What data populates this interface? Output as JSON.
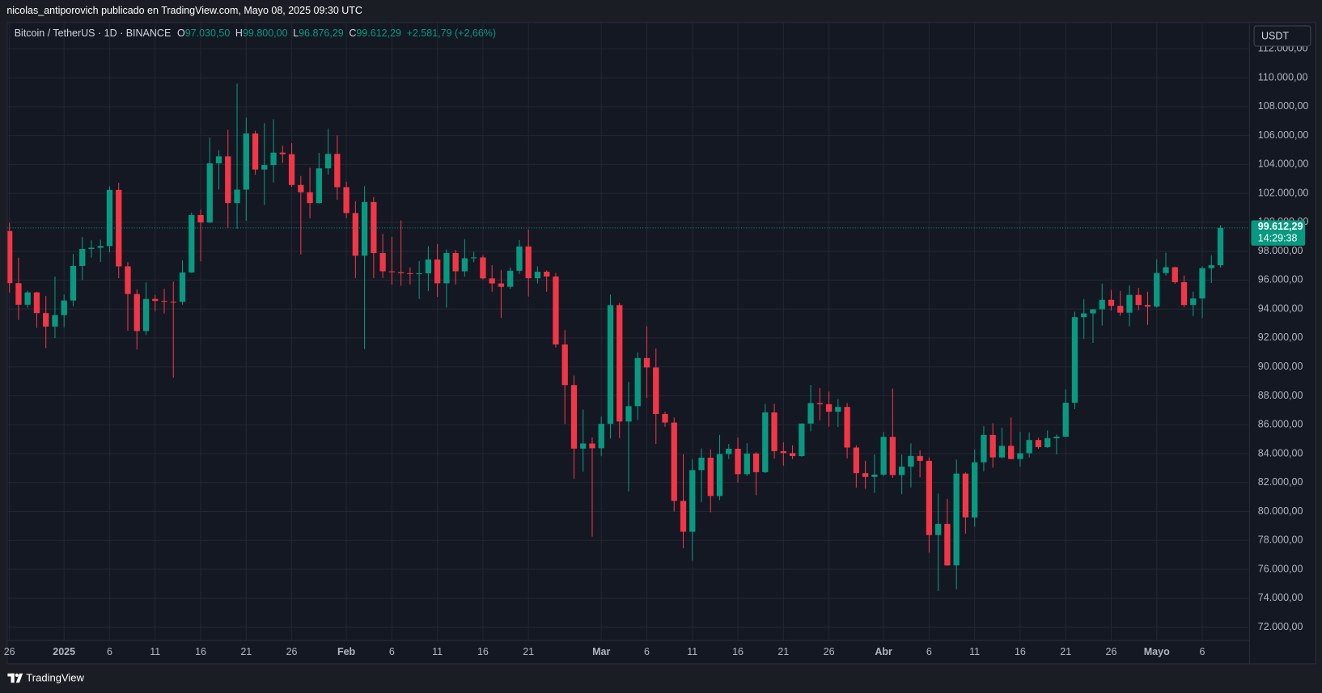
{
  "header": {
    "text": "nicolas_antiporovich publicado en TradingView.com, Mayo 08, 2025 09:30 UTC"
  },
  "chart_data": {
    "type": "candlestick",
    "title": "Bitcoin / TetherUS · 1D · BINANCE",
    "ohlc_legend": [
      {
        "key": "O",
        "label": "97.030,50"
      },
      {
        "key": "H",
        "label": "99.800,00"
      },
      {
        "key": "L",
        "label": "96.876,29"
      },
      {
        "key": "C",
        "label": "99.612,29"
      }
    ],
    "change_label": "+2.581,79 (+2,66%)",
    "currency": "USDT",
    "up_color": "#089981",
    "down_color": "#f23645",
    "grid": true,
    "categories": [
      "26",
      null,
      null,
      null,
      null,
      null,
      "2025",
      null,
      null,
      null,
      null,
      "6",
      null,
      null,
      null,
      null,
      "11",
      null,
      null,
      null,
      null,
      "16",
      null,
      null,
      null,
      null,
      "21",
      null,
      null,
      null,
      null,
      "26",
      null,
      null,
      null,
      null,
      null,
      "Feb",
      null,
      null,
      null,
      null,
      "6",
      null,
      null,
      null,
      null,
      "11",
      null,
      null,
      null,
      null,
      "16",
      null,
      null,
      null,
      null,
      "21",
      null,
      null,
      null,
      null,
      null,
      null,
      null,
      "Mar",
      null,
      null,
      null,
      null,
      "6",
      null,
      null,
      null,
      null,
      "11",
      null,
      null,
      null,
      null,
      "16",
      null,
      null,
      null,
      null,
      "21",
      null,
      null,
      null,
      null,
      "26",
      null,
      null,
      null,
      null,
      null,
      "Abr",
      null,
      null,
      null,
      null,
      "6",
      null,
      null,
      null,
      null,
      "11",
      null,
      null,
      null,
      null,
      "16",
      null,
      null,
      null,
      null,
      "21",
      null,
      null,
      null,
      null,
      "26",
      null,
      null,
      null,
      null,
      "Mayo",
      null,
      null,
      null,
      null,
      "6",
      null,
      null
    ],
    "open": [
      99400,
      95790,
      94300,
      95150,
      93720,
      92790,
      93580,
      94590,
      96980,
      98150,
      98240,
      98360,
      102240,
      96950,
      95040,
      92480,
      94700,
      94560,
      94510,
      94500,
      96530,
      100500,
      99990,
      104080,
      104560,
      101330,
      102260,
      106140,
      103650,
      103960,
      104820,
      104710,
      102580,
      102080,
      101330,
      103730,
      104730,
      102430,
      100640,
      97690,
      101400,
      97870,
      96610,
      96550,
      96480,
      96470,
      96470,
      97430,
      95780,
      97870,
      96610,
      97510,
      97570,
      96120,
      95770,
      95540,
      96650,
      98330,
      96130,
      96580,
      96250,
      91550,
      88740,
      84350,
      84700,
      84370,
      86060,
      94270,
      86220,
      87280,
      90610,
      89960,
      86740,
      86150,
      80730,
      78600,
      82860,
      83720,
      81070,
      83970,
      84340,
      82580,
      84010,
      82720,
      86850,
      84170,
      84040,
      83830,
      86080,
      87500,
      87420,
      86900,
      87230,
      84420,
      82650,
      82390,
      82550,
      85160,
      82520,
      83100,
      83840,
      83500,
      78370,
      79140,
      76270,
      82620,
      79590,
      83400,
      85290,
      83740,
      84540,
      83630,
      84030,
      84940,
      84450,
      85060,
      85170,
      87520,
      93440,
      93700,
      93980,
      94640,
      94220,
      93750,
      94980,
      94280,
      94170,
      96490,
      96890,
      95860,
      94280,
      94730,
      96830,
      97030.5
    ],
    "high": [
      99960,
      97540,
      95270,
      95200,
      94900,
      96250,
      95000,
      97800,
      98980,
      98750,
      98800,
      102480,
      102730,
      97250,
      95350,
      95840,
      94980,
      95400,
      95900,
      97370,
      100680,
      100870,
      105860,
      104990,
      106400,
      109590,
      107240,
      106330,
      106850,
      107120,
      105290,
      105470,
      103200,
      103780,
      104800,
      106460,
      106010,
      102800,
      101460,
      102500,
      101740,
      99200,
      99000,
      100140,
      96880,
      97320,
      98350,
      98500,
      98120,
      98080,
      98830,
      97970,
      97730,
      97030,
      96710,
      96890,
      98770,
      99500,
      96950,
      96670,
      96500,
      92540,
      89400,
      87050,
      85120,
      86560,
      95000,
      94420,
      88960,
      91000,
      92810,
      91280,
      86900,
      86500,
      83950,
      83620,
      84360,
      84300,
      85300,
      84670,
      85110,
      84720,
      84100,
      87440,
      87450,
      84780,
      84570,
      86100,
      88750,
      88540,
      88290,
      87790,
      87500,
      84570,
      83500,
      83940,
      85490,
      88500,
      83940,
      84720,
      84230,
      83750,
      81240,
      80870,
      83590,
      82700,
      84300,
      85900,
      86100,
      85800,
      86500,
      85500,
      85470,
      85100,
      85600,
      85320,
      88460,
      93820,
      94700,
      94000,
      95760,
      95320,
      95250,
      95630,
      95470,
      95200,
      97440,
      97900,
      96940,
      96320,
      95200,
      96950,
      97730,
      99800
    ],
    "low": [
      95140,
      93250,
      94100,
      92700,
      91300,
      92000,
      92740,
      94200,
      96000,
      97550,
      97250,
      97920,
      96130,
      92500,
      91200,
      92200,
      93830,
      93700,
      89250,
      94300,
      96500,
      97300,
      99940,
      102270,
      99600,
      99550,
      100100,
      103300,
      101200,
      102750,
      104110,
      102450,
      97780,
      100270,
      101290,
      103300,
      101560,
      100280,
      96150,
      91230,
      96150,
      96150,
      95690,
      95620,
      95690,
      94700,
      95250,
      94850,
      94100,
      95700,
      96250,
      97230,
      96050,
      95200,
      93390,
      95400,
      96420,
      94870,
      95770,
      95200,
      91350,
      86050,
      82260,
      82750,
      78260,
      83820,
      85050,
      85080,
      81390,
      86330,
      87850,
      84670,
      85850,
      80000,
      77460,
      76600,
      80650,
      79940,
      80780,
      83630,
      82000,
      82470,
      81130,
      82650,
      83650,
      83170,
      83630,
      83790,
      85540,
      86310,
      85860,
      85840,
      83660,
      81650,
      81570,
      81280,
      82430,
      82320,
      81190,
      81660,
      82370,
      77150,
      74500,
      76240,
      74620,
      78460,
      78940,
      82770,
      83030,
      83680,
      83600,
      83110,
      83740,
      84340,
      84400,
      83950,
      85140,
      87080,
      91940,
      91660,
      92860,
      93900,
      93530,
      92800,
      93920,
      92910,
      94110,
      96320,
      95750,
      94130,
      93510,
      93370,
      95800,
      96876.29
    ],
    "close": [
      95790,
      94300,
      95150,
      93720,
      92790,
      93580,
      94590,
      96980,
      98150,
      98240,
      98360,
      102240,
      96950,
      95040,
      92480,
      94700,
      94560,
      94510,
      94500,
      96530,
      100500,
      99990,
      104080,
      104560,
      101330,
      102260,
      106140,
      103650,
      103960,
      104820,
      104710,
      102580,
      102080,
      101330,
      103730,
      104730,
      102430,
      100640,
      97690,
      101400,
      97870,
      96610,
      96550,
      96480,
      96470,
      96470,
      97430,
      95780,
      97870,
      96610,
      97510,
      97570,
      96120,
      95770,
      95540,
      96650,
      98330,
      96130,
      96580,
      96250,
      91550,
      88740,
      84350,
      84700,
      84370,
      86060,
      94270,
      86220,
      87280,
      90610,
      89960,
      86740,
      86150,
      80730,
      78600,
      82860,
      83720,
      81070,
      83970,
      84340,
      82580,
      84010,
      82720,
      86850,
      84170,
      84040,
      83830,
      86080,
      87500,
      87420,
      86900,
      87230,
      84420,
      82650,
      82390,
      82550,
      85160,
      82520,
      83100,
      83840,
      83500,
      78370,
      79140,
      76270,
      82620,
      79590,
      83400,
      85290,
      83740,
      84540,
      83630,
      84030,
      84940,
      84450,
      85060,
      85170,
      87520,
      93440,
      93700,
      93980,
      94640,
      94220,
      93750,
      94980,
      94280,
      94170,
      96490,
      96890,
      95860,
      94280,
      94730,
      96830,
      97030.5,
      99612.29
    ],
    "ylim": [
      71070,
      113790
    ],
    "yticks": [
      {
        "value": 72000,
        "label": "72.000,00"
      },
      {
        "value": 74000,
        "label": "74.000,00"
      },
      {
        "value": 76000,
        "label": "76.000,00"
      },
      {
        "value": 78000,
        "label": "78.000,00"
      },
      {
        "value": 80000,
        "label": "80.000,00"
      },
      {
        "value": 82000,
        "label": "82.000,00"
      },
      {
        "value": 84000,
        "label": "84.000,00"
      },
      {
        "value": 86000,
        "label": "86.000,00"
      },
      {
        "value": 88000,
        "label": "88.000,00"
      },
      {
        "value": 90000,
        "label": "90.000,00"
      },
      {
        "value": 92000,
        "label": "92.000,00"
      },
      {
        "value": 94000,
        "label": "94.000,00"
      },
      {
        "value": 96000,
        "label": "96.000,00"
      },
      {
        "value": 98000,
        "label": "98.000,00"
      },
      {
        "value": 100000,
        "label": "100.000,00"
      },
      {
        "value": 102000,
        "label": "102.000,00"
      },
      {
        "value": 104000,
        "label": "104.000,00"
      },
      {
        "value": 106000,
        "label": "106.000,00"
      },
      {
        "value": 108000,
        "label": "108.000,00"
      },
      {
        "value": 110000,
        "label": "110.000,00"
      },
      {
        "value": 112000,
        "label": "112.000,00"
      }
    ],
    "last_price": {
      "value": 99612.29,
      "label": "99.612,29"
    },
    "countdown": "14:29:38"
  },
  "footer": {
    "brand": "TradingView"
  }
}
